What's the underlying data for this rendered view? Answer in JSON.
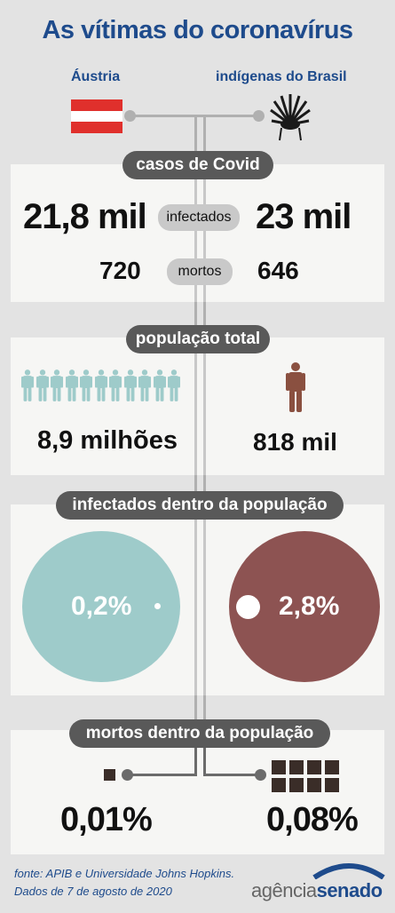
{
  "title": "As vítimas do coronavírus",
  "left_label": "Áustria",
  "right_label": "indígenas do Brasil",
  "sections": {
    "cases": "casos de Covid",
    "population": "população total",
    "infected_share": "infectados dentro da população",
    "deaths_share": "mortos dentro da população"
  },
  "infected": {
    "label": "infectados",
    "left": "21,8 mil",
    "right": "23 mil"
  },
  "deaths": {
    "label": "mortos",
    "left": "720",
    "right": "646"
  },
  "population": {
    "left": "8,9 milhões",
    "right": "818 mil"
  },
  "infected_pct": {
    "left": "0,2%",
    "right": "2,8%"
  },
  "deaths_pct": {
    "left": "0,01%",
    "right": "0,08%"
  },
  "footer": {
    "source": "fonte: APIB  e  Universidade Johns Hopkins.",
    "date": "Dados de 7 de agosto de 2020"
  },
  "logo": {
    "part1": "agência",
    "part2": "senado"
  },
  "colors": {
    "title": "#1e4b8c",
    "austria_circle": "#9ecbca",
    "indigenous_circle": "#8d5352",
    "pill": "#595959",
    "line": "#6b6b6b",
    "person_austria": "#9ecbca",
    "person_indigenous": "#8a5040"
  },
  "icons": {
    "flag": "austria-flag-icon",
    "headdress": "indigenous-headdress-icon",
    "person": "person-icon"
  }
}
